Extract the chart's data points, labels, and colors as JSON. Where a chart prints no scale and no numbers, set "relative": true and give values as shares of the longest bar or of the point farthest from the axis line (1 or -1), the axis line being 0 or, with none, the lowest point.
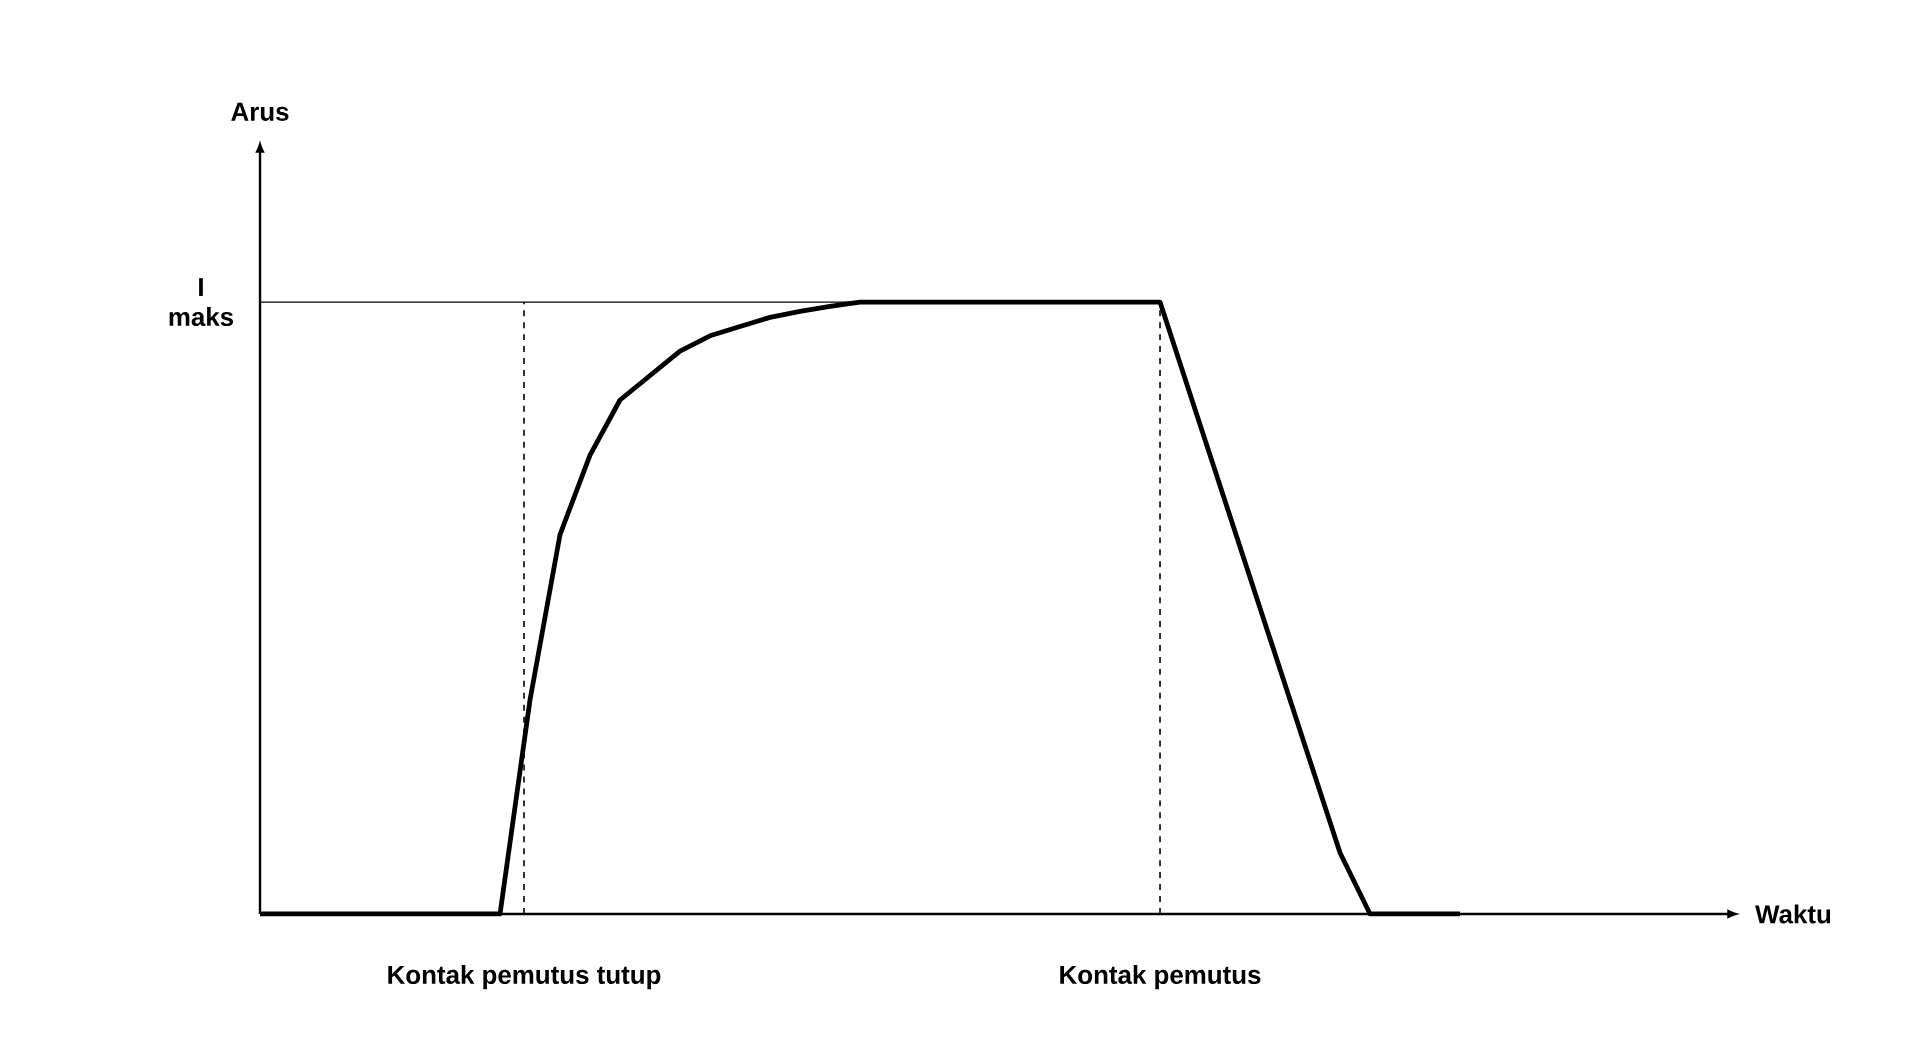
{
  "chart_data": {
    "type": "line",
    "relative": true,
    "annotations": [
      "Arus",
      "Waktu",
      "Kontak pemutus tutup",
      "Kontak pemutus"
    ],
    "categories": [
      null,
      null,
      null,
      null,
      null,
      null,
      null,
      null,
      null,
      null,
      null,
      null,
      null,
      null,
      null,
      null,
      null,
      null,
      null,
      null,
      null,
      null,
      null,
      null,
      null,
      null,
      null,
      null,
      null,
      null,
      null,
      null,
      null,
      null,
      null,
      null,
      null,
      null,
      null,
      null,
      null
    ],
    "series": [
      {
        "color": "#000000",
        "values": [
          0,
          0,
          0,
          0,
          0,
          0,
          0,
          0,
          0,
          0.35,
          0.62,
          0.75,
          0.84,
          0.88,
          0.92,
          0.945,
          0.96,
          0.975,
          0.985,
          0.993,
          1,
          1,
          1,
          1,
          1,
          1,
          1,
          1,
          1,
          1,
          1,
          0.85,
          0.7,
          0.55,
          0.4,
          0.25,
          0.1,
          0,
          0,
          0,
          0
        ]
      }
    ],
    "ref_lines": [
      {
        "axis": "y",
        "value": 1,
        "label": "I maks",
        "line_style": "solid"
      }
    ]
  }
}
